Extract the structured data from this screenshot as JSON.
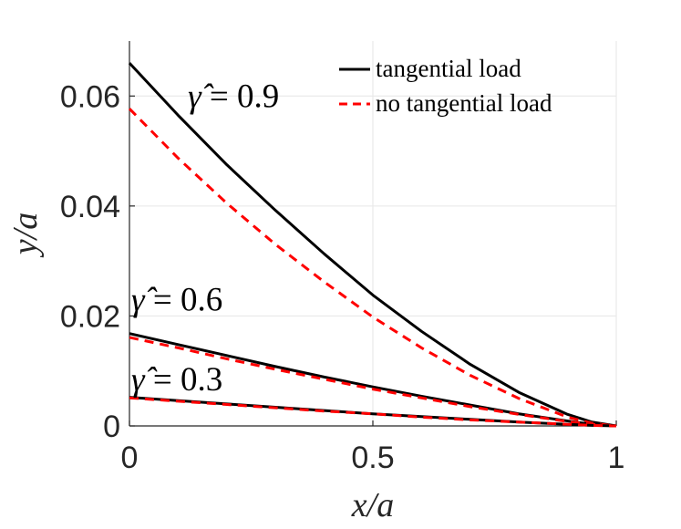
{
  "chart_data": {
    "type": "line",
    "title": "",
    "xlabel": "x/a",
    "ylabel": "y/a",
    "xlim": [
      0,
      1
    ],
    "ylim": [
      0,
      0.07
    ],
    "xticks": [
      0,
      0.5,
      1
    ],
    "xtick_labels": [
      "0",
      "0.5",
      "1"
    ],
    "yticks": [
      0,
      0.02,
      0.04,
      0.06
    ],
    "ytick_labels": [
      "0",
      "0.02",
      "0.04",
      "0.06"
    ],
    "grid": true,
    "legend_position": "top-right",
    "legend": [
      {
        "label": "tangential load",
        "color": "#000000",
        "style": "solid"
      },
      {
        "label": "no tangential load",
        "color": "#ff0000",
        "style": "dashed"
      }
    ],
    "annotations": [
      {
        "symbol": "γ̂",
        "text": " = 0.9",
        "x": 0.12,
        "y": 0.058
      },
      {
        "symbol": "γ̂",
        "text": " = 0.6",
        "x": 0.0,
        "y": 0.021
      },
      {
        "symbol": "γ̂",
        "text": " = 0.3",
        "x": 0.0,
        "y": 0.0065
      }
    ],
    "series": [
      {
        "name": "tangential load, γ̂ = 0.9",
        "color": "#000000",
        "style": "solid",
        "x": [
          0,
          0.1,
          0.2,
          0.3,
          0.4,
          0.5,
          0.6,
          0.7,
          0.8,
          0.9,
          0.95,
          1.0
        ],
        "y": [
          0.066,
          0.0565,
          0.0475,
          0.0392,
          0.0313,
          0.0238,
          0.0172,
          0.0112,
          0.0061,
          0.0021,
          0.0007,
          0.0
        ]
      },
      {
        "name": "no tangential load, γ̂ = 0.9",
        "color": "#ff0000",
        "style": "dashed",
        "x": [
          0,
          0.1,
          0.2,
          0.3,
          0.4,
          0.5,
          0.6,
          0.7,
          0.8,
          0.9,
          0.95,
          1.0
        ],
        "y": [
          0.0577,
          0.0487,
          0.0405,
          0.033,
          0.0262,
          0.0198,
          0.0142,
          0.0092,
          0.005,
          0.0016,
          0.0005,
          0.0
        ]
      },
      {
        "name": "tangential load, γ̂ = 0.6",
        "color": "#000000",
        "style": "solid",
        "x": [
          0,
          0.1,
          0.2,
          0.3,
          0.4,
          0.5,
          0.6,
          0.7,
          0.8,
          0.9,
          0.95,
          1.0
        ],
        "y": [
          0.0168,
          0.0148,
          0.0128,
          0.0108,
          0.0089,
          0.0071,
          0.0054,
          0.0038,
          0.0022,
          0.0009,
          0.0003,
          0.0
        ]
      },
      {
        "name": "no tangential load, γ̂ = 0.6",
        "color": "#ff0000",
        "style": "dashed",
        "x": [
          0,
          0.1,
          0.2,
          0.3,
          0.4,
          0.5,
          0.6,
          0.7,
          0.8,
          0.9,
          0.95,
          1.0
        ],
        "y": [
          0.0161,
          0.0142,
          0.0122,
          0.0103,
          0.0085,
          0.0067,
          0.0051,
          0.0035,
          0.0021,
          0.0008,
          0.0003,
          0.0
        ]
      },
      {
        "name": "tangential load, γ̂ = 0.3",
        "color": "#000000",
        "style": "solid",
        "x": [
          0,
          0.1,
          0.2,
          0.3,
          0.4,
          0.5,
          0.6,
          0.7,
          0.8,
          0.9,
          0.95,
          1.0
        ],
        "y": [
          0.0052,
          0.0046,
          0.004,
          0.0034,
          0.0028,
          0.0022,
          0.0017,
          0.0012,
          0.0007,
          0.0003,
          0.0001,
          0.0
        ]
      },
      {
        "name": "no tangential load, γ̂ = 0.3",
        "color": "#ff0000",
        "style": "dashed",
        "x": [
          0,
          0.1,
          0.2,
          0.3,
          0.4,
          0.5,
          0.6,
          0.7,
          0.8,
          0.9,
          0.95,
          1.0
        ],
        "y": [
          0.0051,
          0.0045,
          0.0039,
          0.0033,
          0.0027,
          0.0022,
          0.0016,
          0.0011,
          0.0007,
          0.0003,
          0.0001,
          0.0
        ]
      }
    ]
  }
}
